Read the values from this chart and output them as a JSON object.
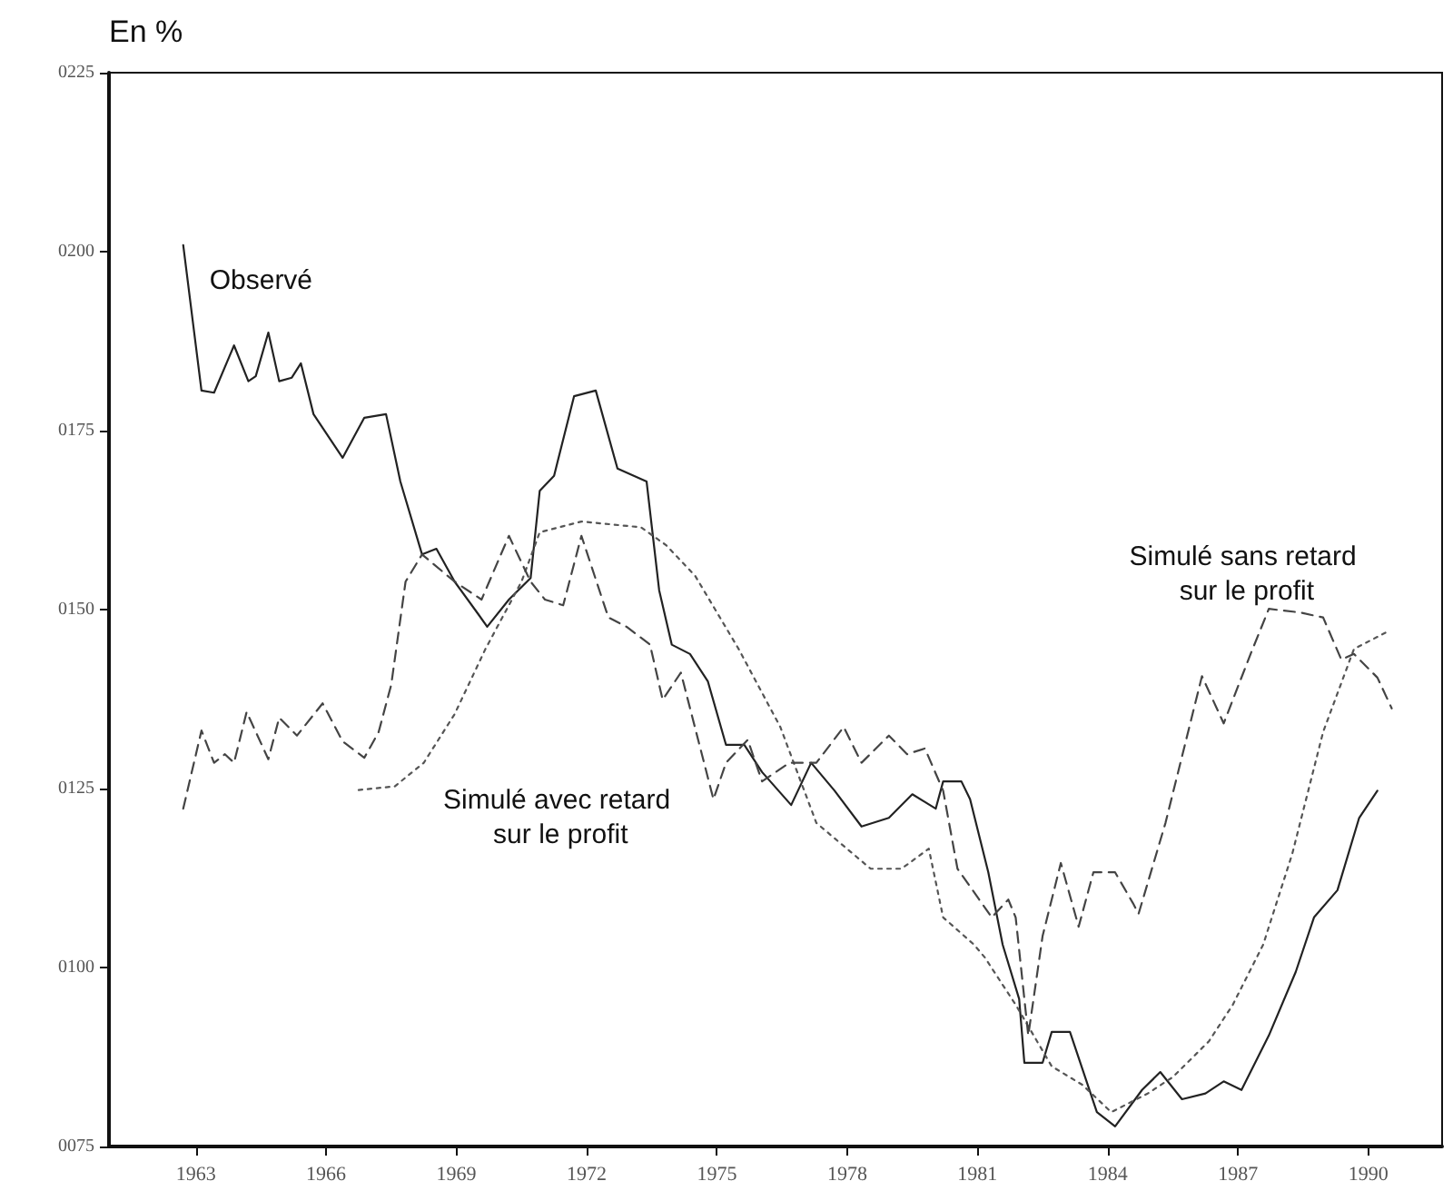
{
  "chart_data": {
    "type": "line",
    "ylabel": "En %",
    "xlim": [
      1961,
      1991.7
    ],
    "xticks": [
      1963,
      1966,
      1969,
      1972,
      1975,
      1978,
      1981,
      1984,
      1987,
      1990
    ],
    "ylim": [
      75,
      225
    ],
    "yticks": [
      {
        "value": 75,
        "label": "0075"
      },
      {
        "value": 100,
        "label": "0100"
      },
      {
        "value": 125,
        "label": "0125"
      },
      {
        "value": 150,
        "label": "0150"
      },
      {
        "value": 175,
        "label": "0175"
      },
      {
        "value": 200,
        "label": "0200"
      },
      {
        "value": 225,
        "label": "0225"
      }
    ],
    "grid": false,
    "legend": false,
    "marker": "none",
    "series": [
      {
        "name": "Observé",
        "color": "#222222",
        "line_style": "solid",
        "x": [
          1962.71,
          1963.13,
          1963.42,
          1963.88,
          1964.21,
          1964.38,
          1964.67,
          1964.92,
          1965.21,
          1965.42,
          1965.71,
          1966.38,
          1966.88,
          1967.38,
          1967.71,
          1968.21,
          1968.54,
          1968.96,
          1969.5,
          1969.71,
          1970.21,
          1970.71,
          1970.92,
          1971.25,
          1971.71,
          1972.21,
          1972.71,
          1973.38,
          1973.67,
          1973.96,
          1974.38,
          1974.79,
          1975.21,
          1975.63,
          1976.04,
          1976.71,
          1977.17,
          1977.71,
          1978.33,
          1978.96,
          1979.5,
          1980.04,
          1980.21,
          1980.63,
          1980.83,
          1981.25,
          1981.58,
          1981.96,
          1982.08,
          1982.5,
          1982.71,
          1983.13,
          1983.75,
          1984.17,
          1984.79,
          1985.21,
          1985.71,
          1986.25,
          1986.67,
          1987.08,
          1987.71,
          1988.33,
          1988.75,
          1989.29,
          1989.79,
          1990.21
        ],
        "values": [
          200.9,
          180.6,
          180.3,
          186.9,
          181.9,
          182.6,
          188.7,
          181.9,
          182.4,
          184.4,
          177.3,
          171.2,
          176.8,
          177.3,
          167.9,
          157.7,
          158.5,
          153.9,
          149.4,
          147.6,
          151.4,
          154.4,
          166.6,
          168.7,
          179.8,
          180.6,
          169.7,
          167.9,
          152.7,
          145.1,
          143.8,
          140,
          131.1,
          131.1,
          127.3,
          122.7,
          128.6,
          124.7,
          119.7,
          120.9,
          124.2,
          122.2,
          126,
          126,
          123.5,
          113.3,
          103.2,
          95.6,
          86.7,
          86.7,
          91,
          91,
          79.8,
          77.8,
          82.9,
          85.4,
          81.6,
          82.4,
          84.1,
          82.9,
          90.5,
          99.4,
          107,
          110.8,
          120.9,
          124.7
        ]
      },
      {
        "name": "Simulé avec retard sur le profit",
        "color": "#555555",
        "line_style": "dotted",
        "x": [
          1966.75,
          1967.58,
          1968.25,
          1968.96,
          1969.67,
          1970.5,
          1970.92,
          1971.88,
          1973.25,
          1973.83,
          1974.5,
          1975.5,
          1976.46,
          1977.29,
          1978.54,
          1979.25,
          1979.88,
          1980.21,
          1980.92,
          1981.17,
          1981.88,
          1982.71,
          1983.42,
          1984.08,
          1984.92,
          1985.5,
          1986.33,
          1986.88,
          1987.58,
          1988.25,
          1988.96,
          1989.67,
          1990.5
        ],
        "values": [
          124.8,
          125.3,
          128.6,
          135.4,
          144.5,
          153.9,
          160.8,
          162.3,
          161.5,
          159,
          154.7,
          144.5,
          133.6,
          120.2,
          113.8,
          113.8,
          116.6,
          107,
          103.2,
          101.4,
          94.8,
          86.2,
          83.6,
          79.8,
          82.4,
          84.7,
          89.7,
          94.8,
          103.2,
          115.9,
          132.9,
          144.5,
          147.1
        ]
      },
      {
        "name": "Simulé sans retard sur le profit",
        "color": "#444444",
        "line_style": "dashed",
        "x": [
          1962.71,
          1963.13,
          1963.42,
          1963.67,
          1963.88,
          1964.17,
          1964.67,
          1964.92,
          1965.33,
          1965.92,
          1966.38,
          1966.88,
          1967.21,
          1967.5,
          1967.83,
          1968.21,
          1968.96,
          1969.58,
          1970.21,
          1970.71,
          1971.04,
          1971.46,
          1971.88,
          1972.5,
          1972.92,
          1973.46,
          1973.75,
          1974.17,
          1974.92,
          1975.21,
          1975.71,
          1976.04,
          1976.67,
          1977.29,
          1977.92,
          1978.33,
          1978.96,
          1979.38,
          1979.79,
          1980.21,
          1980.54,
          1981.04,
          1981.33,
          1981.71,
          1981.88,
          1982.17,
          1982.5,
          1982.92,
          1983.33,
          1983.67,
          1984.17,
          1984.58,
          1984.71,
          1985.33,
          1986.17,
          1986.67,
          1987.29,
          1987.71,
          1988.42,
          1988.96,
          1989.38,
          1989.67,
          1990.21,
          1990.54
        ],
        "values": [
          122.2,
          133.1,
          128.6,
          129.8,
          128.6,
          135.7,
          129.1,
          134.9,
          132.4,
          136.9,
          131.6,
          129.3,
          132.9,
          139.5,
          153.9,
          157.7,
          153.9,
          151.4,
          160.3,
          153.9,
          151.4,
          150.6,
          160.3,
          148.9,
          147.6,
          145.1,
          137.4,
          141.2,
          123.5,
          128.6,
          131.8,
          126,
          128.6,
          128.6,
          133.6,
          128.6,
          132.4,
          129.8,
          130.6,
          124.7,
          113.8,
          109.5,
          107,
          109.5,
          107,
          90.5,
          104.4,
          114.6,
          105.7,
          113.3,
          113.3,
          109,
          107.5,
          120.2,
          140.7,
          134.1,
          143.8,
          150.1,
          149.6,
          148.9,
          143,
          143.8,
          140.5,
          136.2
        ]
      }
    ]
  }
}
